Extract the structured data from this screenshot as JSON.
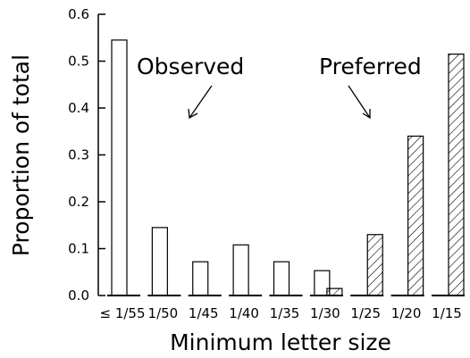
{
  "chart_data": {
    "type": "bar",
    "title": "",
    "xlabel": "Minimum letter size",
    "ylabel": "Proportion of total",
    "ylim": [
      0,
      0.6
    ],
    "yticks": [
      "0.0",
      "0.1",
      "0.2",
      "0.3",
      "0.4",
      "0.5",
      "0.6"
    ],
    "grid": false,
    "categories": [
      "≤ 1/55",
      "1/50",
      "1/45",
      "1/40",
      "1/35",
      "1/30",
      "1/25",
      "1/20",
      "1/15"
    ],
    "series": [
      {
        "name": "Observed",
        "fill": "none",
        "values": [
          0.545,
          0.145,
          0.072,
          0.108,
          0.072,
          0.053,
          0.0,
          0.0,
          0.0
        ]
      },
      {
        "name": "Preferred",
        "fill": "hatched",
        "values": [
          0.0,
          0.0,
          0.0,
          0.0,
          0.0,
          0.015,
          0.13,
          0.34,
          0.515
        ]
      }
    ],
    "annotations": [
      "Observed",
      "Preferred"
    ]
  }
}
